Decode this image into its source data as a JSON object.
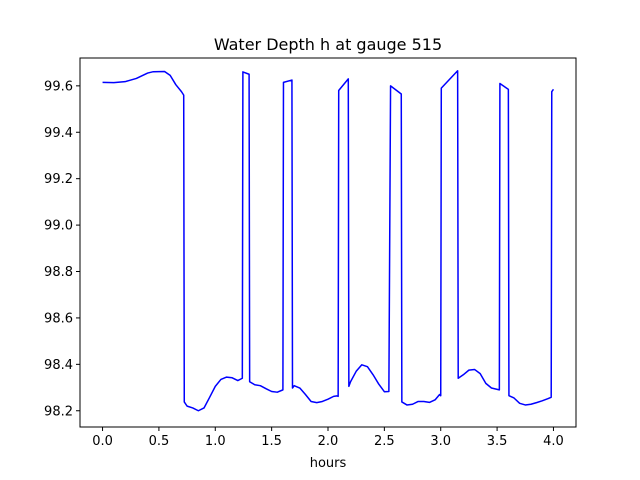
{
  "chart_data": {
    "type": "line",
    "title": "Water Depth h at gauge 515",
    "xlabel": "hours",
    "ylabel": "",
    "xlim": [
      -0.2,
      4.2
    ],
    "ylim": [
      98.13,
      99.72
    ],
    "grid": false,
    "legend": "none",
    "xticks": [
      0.0,
      0.5,
      1.0,
      1.5,
      2.0,
      2.5,
      3.0,
      3.5,
      4.0
    ],
    "xtick_labels": [
      "0.0",
      "0.5",
      "1.0",
      "1.5",
      "2.0",
      "2.5",
      "3.0",
      "3.5",
      "4.0"
    ],
    "yticks": [
      98.2,
      98.4,
      98.6,
      98.8,
      99.0,
      99.2,
      99.4,
      99.6
    ],
    "ytick_labels": [
      "98.2",
      "98.4",
      "98.6",
      "98.8",
      "99.0",
      "99.2",
      "99.4",
      "99.6"
    ],
    "series": [
      {
        "name": "",
        "color": "#0000ff",
        "x": [
          0.0,
          0.1,
          0.2,
          0.3,
          0.4,
          0.45,
          0.55,
          0.6,
          0.65,
          0.7,
          0.72,
          0.725,
          0.75,
          0.8,
          0.85,
          0.9,
          0.95,
          1.0,
          1.05,
          1.1,
          1.15,
          1.2,
          1.24,
          1.245,
          1.3,
          1.305,
          1.35,
          1.4,
          1.45,
          1.5,
          1.55,
          1.6,
          1.605,
          1.68,
          1.685,
          1.7,
          1.75,
          1.8,
          1.85,
          1.9,
          1.95,
          2.0,
          2.05,
          2.08,
          2.09,
          2.095,
          2.18,
          2.185,
          2.2,
          2.25,
          2.3,
          2.35,
          2.4,
          2.45,
          2.5,
          2.54,
          2.555,
          2.65,
          2.655,
          2.7,
          2.75,
          2.8,
          2.85,
          2.9,
          2.95,
          2.99,
          3.0,
          3.005,
          3.15,
          3.155,
          3.2,
          3.25,
          3.3,
          3.35,
          3.4,
          3.45,
          3.52,
          3.525,
          3.6,
          3.605,
          3.65,
          3.7,
          3.75,
          3.8,
          3.85,
          3.9,
          3.95,
          3.98,
          3.985,
          4.0
        ],
        "y": [
          99.615,
          99.614,
          99.618,
          99.632,
          99.655,
          99.661,
          99.662,
          99.645,
          99.605,
          99.575,
          99.56,
          98.238,
          98.22,
          98.212,
          98.2,
          98.212,
          98.258,
          98.305,
          98.335,
          98.345,
          98.342,
          98.33,
          98.34,
          99.66,
          99.65,
          98.325,
          98.312,
          98.308,
          98.295,
          98.283,
          98.28,
          98.29,
          99.615,
          99.625,
          98.298,
          98.308,
          98.298,
          98.27,
          98.24,
          98.235,
          98.24,
          98.25,
          98.262,
          98.264,
          98.262,
          99.58,
          99.63,
          98.305,
          98.325,
          98.37,
          98.398,
          98.39,
          98.355,
          98.315,
          98.282,
          98.283,
          99.6,
          99.565,
          98.238,
          98.225,
          98.228,
          98.24,
          98.24,
          98.236,
          98.247,
          98.27,
          98.265,
          99.59,
          99.665,
          98.34,
          98.355,
          98.375,
          98.378,
          98.36,
          98.318,
          98.298,
          98.29,
          99.61,
          99.585,
          98.265,
          98.255,
          98.232,
          98.225,
          98.228,
          98.235,
          98.243,
          98.252,
          98.258,
          99.575,
          99.585
        ]
      }
    ]
  }
}
